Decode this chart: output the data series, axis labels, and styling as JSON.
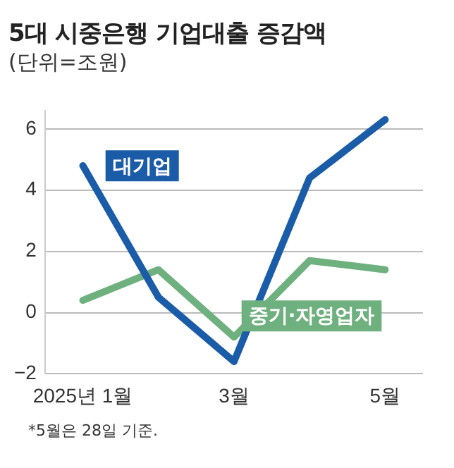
{
  "chart_data": {
    "type": "line",
    "title": "5대 시중은행 기업대출 증감액",
    "subtitle": "(단위=조원)",
    "categories": [
      "2025년 1월",
      null,
      "3월",
      null,
      "5월"
    ],
    "series": [
      {
        "name": "대기업",
        "color": "#1a5ca8",
        "values": [
          4.8,
          0.5,
          -1.6,
          4.4,
          6.3
        ]
      },
      {
        "name": "중기·자영업자",
        "color": "#6fb07f",
        "values": [
          0.4,
          1.4,
          -0.8,
          1.7,
          1.4
        ]
      }
    ],
    "ylim": [
      -2,
      6.6
    ],
    "yticks": [
      {
        "value": -2,
        "label": "−2"
      },
      0,
      2,
      4,
      6
    ],
    "grid": "y",
    "legend": false,
    "marker": "none",
    "line_style": "solid",
    "annotations": [
      "*5월은 28일 기준."
    ]
  }
}
